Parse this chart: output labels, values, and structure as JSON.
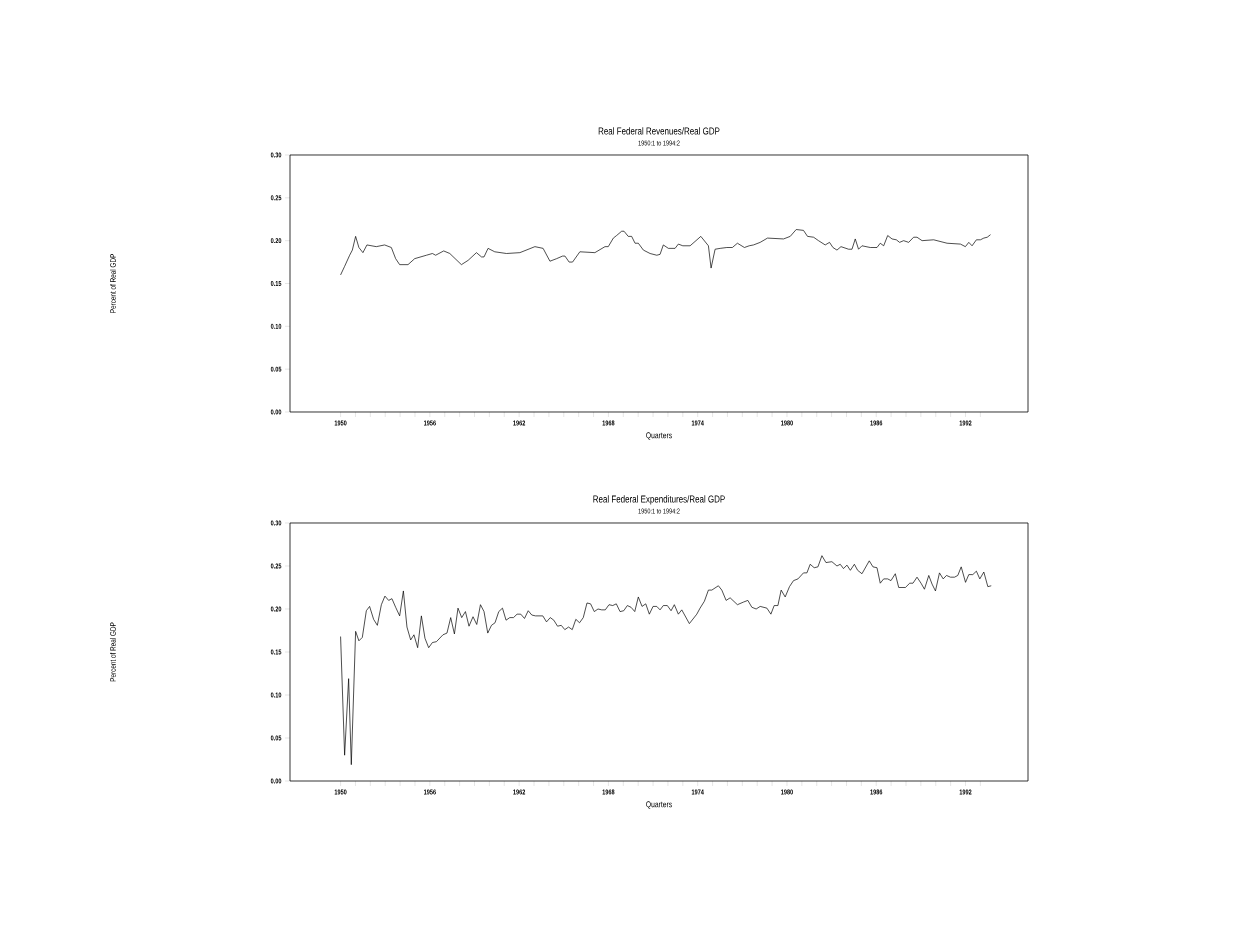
{
  "chart_data": [
    {
      "type": "line",
      "title": "Real Federal Revenues/Real GDP",
      "subtitle": "1950:1 to 1994:2",
      "xlabel": "Quarters",
      "ylabel": "Percent of Real GDP",
      "color": "#000000",
      "x": [
        1950.0,
        1950.27,
        1950.61,
        1950.79,
        1951.01,
        1951.23,
        1951.5,
        1951.77,
        1952.4,
        1952.96,
        1953.41,
        1953.7,
        1953.97,
        1954.53,
        1954.98,
        1955.77,
        1956.17,
        1956.39,
        1956.93,
        1957.34,
        1958.12,
        1958.57,
        1959.13,
        1959.47,
        1959.64,
        1959.91,
        1960.36,
        1961.15,
        1962.05,
        1963.06,
        1963.61,
        1964.07,
        1964.52,
        1964.92,
        1965.08,
        1965.36,
        1965.59,
        1966.08,
        1967.09,
        1967.77,
        1967.99,
        1968.33,
        1968.55,
        1968.89,
        1969.05,
        1969.33,
        1969.56,
        1969.79,
        1970.01,
        1970.35,
        1970.8,
        1971.25,
        1971.47,
        1971.69,
        1972.03,
        1972.48,
        1972.7,
        1973.0,
        1973.49,
        1973.82,
        1974.21,
        1974.72,
        1974.9,
        1975.17,
        1975.51,
        1975.96,
        1976.33,
        1976.67,
        1977.14,
        1977.46,
        1977.75,
        1978.2,
        1978.69,
        1979.77,
        1980.22,
        1980.62,
        1981.11,
        1981.38,
        1981.79,
        1982.12,
        1982.57,
        1982.86,
        1983.09,
        1983.36,
        1983.63,
        1984.14,
        1984.37,
        1984.59,
        1984.81,
        1985.04,
        1985.6,
        1986.05,
        1986.27,
        1986.5,
        1986.77,
        1987.06,
        1987.35,
        1987.57,
        1987.84,
        1988.18,
        1988.51,
        1988.74,
        1989.08,
        1989.86,
        1990.76,
        1991.66,
        1991.99,
        1992.22,
        1992.44,
        1992.73,
        1993.0,
        1993.23,
        1993.46,
        1993.68
      ],
      "values": [
        0.16,
        0.17,
        0.183,
        0.189,
        0.205,
        0.192,
        0.186,
        0.195,
        0.193,
        0.195,
        0.192,
        0.179,
        0.172,
        0.172,
        0.179,
        0.183,
        0.185,
        0.183,
        0.188,
        0.185,
        0.172,
        0.177,
        0.186,
        0.181,
        0.181,
        0.191,
        0.187,
        0.185,
        0.186,
        0.193,
        0.191,
        0.176,
        0.179,
        0.182,
        0.182,
        0.175,
        0.175,
        0.187,
        0.186,
        0.193,
        0.193,
        0.203,
        0.206,
        0.211,
        0.211,
        0.205,
        0.205,
        0.197,
        0.197,
        0.189,
        0.185,
        0.183,
        0.184,
        0.195,
        0.191,
        0.191,
        0.196,
        0.194,
        0.194,
        0.199,
        0.205,
        0.194,
        0.168,
        0.19,
        0.191,
        0.192,
        0.192,
        0.197,
        0.192,
        0.194,
        0.195,
        0.198,
        0.203,
        0.202,
        0.205,
        0.213,
        0.212,
        0.205,
        0.204,
        0.2,
        0.195,
        0.198,
        0.192,
        0.189,
        0.193,
        0.19,
        0.19,
        0.202,
        0.19,
        0.194,
        0.192,
        0.192,
        0.197,
        0.194,
        0.206,
        0.202,
        0.201,
        0.198,
        0.2,
        0.198,
        0.204,
        0.204,
        0.2,
        0.201,
        0.197,
        0.196,
        0.193,
        0.198,
        0.194,
        0.201,
        0.201,
        0.203,
        0.204,
        0.207
      ],
      "xlim": [
        1946.6,
        1996.2
      ],
      "xticks": [
        1950,
        {
          "value": 1951,
          "label": null
        },
        {
          "value": 1952,
          "label": null
        },
        {
          "value": 1953,
          "label": null
        },
        {
          "value": 1954,
          "label": null
        },
        {
          "value": 1955,
          "label": null
        },
        1956,
        {
          "value": 1957,
          "label": null
        },
        {
          "value": 1958,
          "label": null
        },
        {
          "value": 1959,
          "label": null
        },
        {
          "value": 1960,
          "label": null
        },
        {
          "value": 1961,
          "label": null
        },
        1962,
        {
          "value": 1963,
          "label": null
        },
        {
          "value": 1964,
          "label": null
        },
        {
          "value": 1965,
          "label": null
        },
        {
          "value": 1966,
          "label": null
        },
        {
          "value": 1967,
          "label": null
        },
        1968,
        {
          "value": 1969,
          "label": null
        },
        {
          "value": 1970,
          "label": null
        },
        {
          "value": 1971,
          "label": null
        },
        {
          "value": 1972,
          "label": null
        },
        {
          "value": 1973,
          "label": null
        },
        1974,
        {
          "value": 1975,
          "label": null
        },
        {
          "value": 1976,
          "label": null
        },
        {
          "value": 1977,
          "label": null
        },
        {
          "value": 1978,
          "label": null
        },
        {
          "value": 1979,
          "label": null
        },
        1980,
        {
          "value": 1981,
          "label": null
        },
        {
          "value": 1982,
          "label": null
        },
        {
          "value": 1983,
          "label": null
        },
        {
          "value": 1984,
          "label": null
        },
        {
          "value": 1985,
          "label": null
        },
        1986,
        {
          "value": 1987,
          "label": null
        },
        {
          "value": 1988,
          "label": null
        },
        {
          "value": 1989,
          "label": null
        },
        {
          "value": 1990,
          "label": null
        },
        {
          "value": 1991,
          "label": null
        },
        1992,
        {
          "value": 1993,
          "label": null
        }
      ],
      "ylim": [
        0,
        0.3
      ],
      "yticks": [
        {
          "value": 0,
          "label": "0.00"
        },
        {
          "value": 0.05,
          "label": "0.05"
        },
        {
          "value": 0.1,
          "label": "0.10"
        },
        {
          "value": 0.15,
          "label": "0.15"
        },
        {
          "value": 0.2,
          "label": "0.20"
        },
        {
          "value": 0.25,
          "label": "0.25"
        },
        {
          "value": 0.3,
          "label": "0.30"
        }
      ]
    },
    {
      "type": "line",
      "title": "Real Federal Expenditures/Real GDP",
      "subtitle": "1950:1 to 1994:2",
      "xlabel": "Quarters",
      "ylabel": "Percent of Real GDP",
      "color": "#000000",
      "x": [
        1950.0,
        1950.27,
        1950.54,
        1950.72,
        1951.01,
        1951.23,
        1951.46,
        1951.73,
        1951.95,
        1952.22,
        1952.47,
        1952.74,
        1952.98,
        1953.23,
        1953.45,
        1953.7,
        1953.97,
        1954.22,
        1954.46,
        1954.71,
        1954.93,
        1955.18,
        1955.43,
        1955.67,
        1955.92,
        1956.17,
        1956.44,
        1956.88,
        1957.15,
        1957.4,
        1957.65,
        1957.89,
        1958.14,
        1958.39,
        1958.63,
        1958.9,
        1959.15,
        1959.4,
        1959.64,
        1959.89,
        1960.14,
        1960.38,
        1960.63,
        1960.88,
        1961.12,
        1961.37,
        1961.62,
        1961.86,
        1962.11,
        1962.36,
        1962.61,
        1962.85,
        1963.1,
        1963.59,
        1963.84,
        1964.09,
        1964.33,
        1964.58,
        1964.83,
        1965.07,
        1965.32,
        1965.57,
        1965.81,
        1966.06,
        1966.31,
        1966.56,
        1966.8,
        1967.05,
        1967.3,
        1967.55,
        1967.79,
        1968.04,
        1968.29,
        1968.53,
        1968.78,
        1969.03,
        1969.27,
        1969.52,
        1969.77,
        1970.01,
        1970.26,
        1970.51,
        1970.75,
        1971.0,
        1971.25,
        1971.47,
        1971.69,
        1971.96,
        1972.21,
        1972.43,
        1972.7,
        1972.93,
        1973.44,
        1973.94,
        1974.16,
        1974.45,
        1974.72,
        1974.95,
        1975.39,
        1975.62,
        1975.91,
        1976.18,
        1976.67,
        1977.07,
        1977.37,
        1977.64,
        1977.93,
        1978.2,
        1978.65,
        1978.92,
        1979.14,
        1979.39,
        1979.61,
        1979.88,
        1980.17,
        1980.44,
        1980.74,
        1981.11,
        1981.34,
        1981.56,
        1981.83,
        1982.08,
        1982.35,
        1982.62,
        1983.02,
        1983.36,
        1983.58,
        1983.8,
        1984.03,
        1984.26,
        1984.53,
        1984.75,
        1985.04,
        1985.53,
        1985.78,
        1986.05,
        1986.27,
        1986.5,
        1986.77,
        1986.99,
        1987.28,
        1987.51,
        1987.96,
        1988.25,
        1988.47,
        1988.74,
        1989.01,
        1989.24,
        1989.53,
        1989.75,
        1989.98,
        1990.25,
        1990.5,
        1990.72,
        1990.99,
        1991.26,
        1991.48,
        1991.71,
        1992.0,
        1992.22,
        1992.49,
        1992.73,
        1992.96,
        1993.23,
        1993.5,
        1993.73
      ],
      "values": [
        0.168,
        0.03,
        0.119,
        0.019,
        0.174,
        0.163,
        0.167,
        0.198,
        0.203,
        0.188,
        0.181,
        0.205,
        0.215,
        0.21,
        0.212,
        0.202,
        0.192,
        0.221,
        0.179,
        0.164,
        0.17,
        0.155,
        0.192,
        0.166,
        0.155,
        0.161,
        0.162,
        0.17,
        0.172,
        0.19,
        0.171,
        0.201,
        0.19,
        0.197,
        0.18,
        0.191,
        0.182,
        0.205,
        0.197,
        0.172,
        0.181,
        0.184,
        0.197,
        0.201,
        0.187,
        0.19,
        0.19,
        0.194,
        0.194,
        0.189,
        0.198,
        0.193,
        0.192,
        0.192,
        0.185,
        0.19,
        0.187,
        0.18,
        0.181,
        0.176,
        0.179,
        0.176,
        0.188,
        0.184,
        0.19,
        0.207,
        0.206,
        0.197,
        0.2,
        0.199,
        0.199,
        0.205,
        0.204,
        0.206,
        0.197,
        0.198,
        0.204,
        0.202,
        0.197,
        0.214,
        0.203,
        0.206,
        0.194,
        0.203,
        0.203,
        0.199,
        0.204,
        0.204,
        0.198,
        0.205,
        0.194,
        0.199,
        0.183,
        0.194,
        0.201,
        0.209,
        0.222,
        0.222,
        0.227,
        0.222,
        0.21,
        0.213,
        0.205,
        0.208,
        0.21,
        0.202,
        0.2,
        0.203,
        0.201,
        0.194,
        0.204,
        0.204,
        0.222,
        0.214,
        0.226,
        0.233,
        0.235,
        0.242,
        0.242,
        0.252,
        0.248,
        0.249,
        0.262,
        0.254,
        0.255,
        0.25,
        0.252,
        0.247,
        0.251,
        0.245,
        0.252,
        0.245,
        0.241,
        0.256,
        0.249,
        0.248,
        0.23,
        0.235,
        0.235,
        0.233,
        0.241,
        0.225,
        0.225,
        0.23,
        0.23,
        0.237,
        0.23,
        0.223,
        0.239,
        0.229,
        0.221,
        0.242,
        0.235,
        0.239,
        0.237,
        0.237,
        0.239,
        0.249,
        0.231,
        0.24,
        0.24,
        0.244,
        0.235,
        0.243,
        0.226,
        0.227
      ],
      "xlim": [
        1946.6,
        1996.2
      ],
      "xticks": [
        1950,
        {
          "value": 1951,
          "label": null
        },
        {
          "value": 1952,
          "label": null
        },
        {
          "value": 1953,
          "label": null
        },
        {
          "value": 1954,
          "label": null
        },
        {
          "value": 1955,
          "label": null
        },
        1956,
        {
          "value": 1957,
          "label": null
        },
        {
          "value": 1958,
          "label": null
        },
        {
          "value": 1959,
          "label": null
        },
        {
          "value": 1960,
          "label": null
        },
        {
          "value": 1961,
          "label": null
        },
        1962,
        {
          "value": 1963,
          "label": null
        },
        {
          "value": 1964,
          "label": null
        },
        {
          "value": 1965,
          "label": null
        },
        {
          "value": 1966,
          "label": null
        },
        {
          "value": 1967,
          "label": null
        },
        1968,
        {
          "value": 1969,
          "label": null
        },
        {
          "value": 1970,
          "label": null
        },
        {
          "value": 1971,
          "label": null
        },
        {
          "value": 1972,
          "label": null
        },
        {
          "value": 1973,
          "label": null
        },
        1974,
        {
          "value": 1975,
          "label": null
        },
        {
          "value": 1976,
          "label": null
        },
        {
          "value": 1977,
          "label": null
        },
        {
          "value": 1978,
          "label": null
        },
        {
          "value": 1979,
          "label": null
        },
        1980,
        {
          "value": 1981,
          "label": null
        },
        {
          "value": 1982,
          "label": null
        },
        {
          "value": 1983,
          "label": null
        },
        {
          "value": 1984,
          "label": null
        },
        {
          "value": 1985,
          "label": null
        },
        1986,
        {
          "value": 1987,
          "label": null
        },
        {
          "value": 1988,
          "label": null
        },
        {
          "value": 1989,
          "label": null
        },
        {
          "value": 1990,
          "label": null
        },
        {
          "value": 1991,
          "label": null
        },
        1992,
        {
          "value": 1993,
          "label": null
        }
      ],
      "ylim": [
        0,
        0.3
      ],
      "yticks": [
        {
          "value": 0,
          "label": "0.00"
        },
        {
          "value": 0.05,
          "label": "0.05"
        },
        {
          "value": 0.1,
          "label": "0.10"
        },
        {
          "value": 0.15,
          "label": "0.15"
        },
        {
          "value": 0.2,
          "label": "0.20"
        },
        {
          "value": 0.25,
          "label": "0.25"
        },
        {
          "value": 0.3,
          "label": "0.30"
        }
      ]
    }
  ]
}
